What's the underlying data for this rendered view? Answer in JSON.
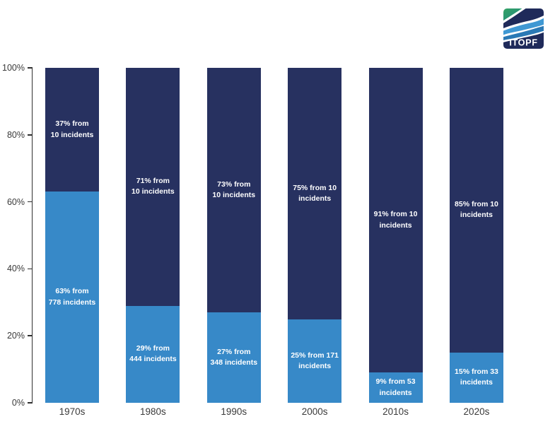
{
  "logo": {
    "text": "ITOPF",
    "colors": {
      "navy": "#1f2a5a",
      "green_top": "#35a265",
      "green_teal": "#1f8a80",
      "blue_light": "#3f98d3",
      "blue_mid": "#2a79b5"
    }
  },
  "chart_data": {
    "type": "bar",
    "stacked": true,
    "title": "",
    "xlabel": "",
    "ylabel": "",
    "ylim": [
      0,
      100
    ],
    "grid": false,
    "legend": false,
    "y_ticks": [
      "0%",
      "20%",
      "40%",
      "60%",
      "80%",
      "100%"
    ],
    "categories": [
      "1970s",
      "1980s",
      "1990s",
      "2000s",
      "2010s",
      "2020s"
    ],
    "series": [
      {
        "name": "bottom-segment",
        "color": "#3789c8",
        "values": [
          63,
          29,
          27,
          25,
          9,
          15
        ],
        "labels": [
          [
            "63% from",
            "778 incidents"
          ],
          [
            "29% from",
            "444 incidents"
          ],
          [
            "27% from",
            "348 incidents"
          ],
          [
            "25% from 171",
            "incidents"
          ],
          [
            "9% from 53",
            "incidents"
          ],
          [
            "15% from 33",
            "incidents"
          ]
        ]
      },
      {
        "name": "top-segment",
        "color": "#273160",
        "values": [
          37,
          71,
          73,
          75,
          91,
          85
        ],
        "labels": [
          [
            "37% from",
            "10 incidents"
          ],
          [
            "71% from",
            "10 incidents"
          ],
          [
            "73% from",
            "10 incidents"
          ],
          [
            "75% from 10",
            "incidents"
          ],
          [
            "91% from 10",
            "incidents"
          ],
          [
            "85% from 10",
            "incidents"
          ]
        ]
      }
    ]
  }
}
